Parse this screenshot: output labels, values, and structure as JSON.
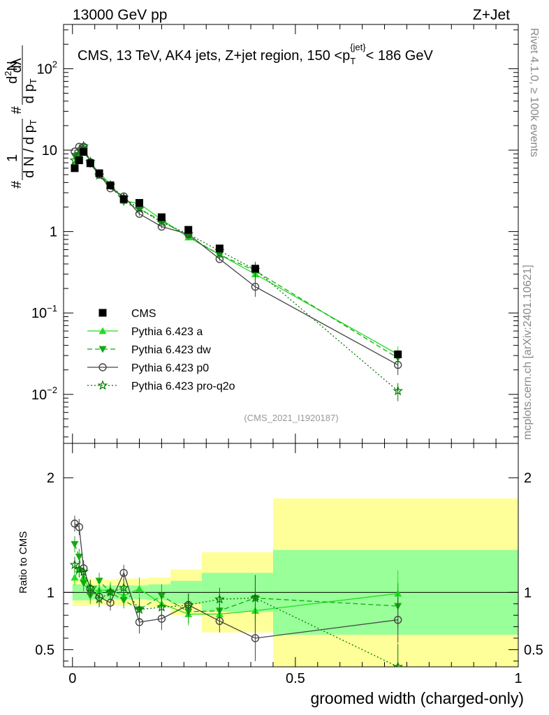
{
  "header": {
    "left_label": "13000 GeV pp",
    "right_label": "Z+Jet"
  },
  "side_labels": {
    "rivet": "Rivet 4.1.0, ≥ 100k events",
    "mcplots": "mcplots.cern.ch [arXiv:2401.10621]"
  },
  "chart_data": [
    {
      "type": "line",
      "scale": "log",
      "title": "CMS, 13 TeV, AK4 jets, Z+jet region, 150 <p_T^{jet}< 186 GeV",
      "title_parts": {
        "main": "CMS, 13 TeV, AK4 jets, Z+jet region, 150 <p",
        "sub": "T",
        "sup": "{jet}",
        "tail": "< 186 GeV"
      },
      "ylabel": "1/dN/dpT · d²N/dpT dλ",
      "ylabel_parts": {
        "one": "1",
        "den": "d N / d p",
        "den_sub": "T",
        "num": "d",
        "num_sup": "2",
        "num_N": "N",
        "den2": "d p",
        "den2_sub": "T",
        "lambda": "dλ",
        "hash": "#"
      },
      "watermark": "(CMS_2021_I1920187)",
      "xlim": [
        -0.02,
        1.0
      ],
      "ylim": [
        0.0025,
        350
      ],
      "y_ticks": [
        {
          "value": 0.01,
          "base": "10",
          "exp": "−2"
        },
        {
          "value": 0.1,
          "base": "10",
          "exp": "−1"
        },
        {
          "value": 1,
          "base": "1",
          "exp": ""
        },
        {
          "value": 10,
          "base": "10",
          "exp": ""
        },
        {
          "value": 100,
          "base": "10",
          "exp": "2"
        }
      ],
      "x": [
        0.005,
        0.015,
        0.025,
        0.04,
        0.06,
        0.085,
        0.115,
        0.15,
        0.2,
        0.26,
        0.33,
        0.41,
        0.73
      ],
      "series": [
        {
          "name": "CMS",
          "color": "#000000",
          "marker": "square",
          "line": "none",
          "values": [
            6.0,
            7.5,
            9.5,
            6.9,
            5.2,
            3.7,
            2.5,
            2.25,
            1.5,
            1.05,
            0.62,
            0.35,
            0.031
          ]
        },
        {
          "name": "Pythia 6.423 a",
          "color": "#22dd22",
          "marker": "triangle-up",
          "line": "solid",
          "values": [
            6.8,
            9.0,
            10.8,
            7.0,
            5.3,
            3.8,
            2.4,
            2.2,
            1.4,
            0.85,
            0.52,
            0.3,
            0.031
          ]
        },
        {
          "name": "Pythia 6.423 dw",
          "color": "#11aa11",
          "marker": "triangle-down",
          "line": "dashed",
          "values": [
            8.5,
            9.8,
            10.2,
            6.7,
            5.0,
            3.7,
            2.3,
            1.9,
            1.35,
            0.87,
            0.52,
            0.33,
            0.028
          ]
        },
        {
          "name": "Pythia 6.423 p0",
          "color": "#444444",
          "marker": "circle-open",
          "line": "solid",
          "values": [
            9.6,
            11.0,
            11.0,
            7.1,
            5.0,
            3.4,
            2.7,
            1.65,
            1.15,
            0.93,
            0.46,
            0.21,
            0.023
          ]
        },
        {
          "name": "Pythia 6.423 pro-q2o",
          "color": "#007700",
          "marker": "star-open",
          "line": "dotted",
          "values": [
            7.5,
            9.0,
            11.2,
            7.2,
            4.9,
            3.7,
            2.6,
            1.9,
            1.3,
            0.93,
            0.58,
            0.34,
            0.011
          ]
        }
      ]
    },
    {
      "type": "line",
      "scale": "linear",
      "xlabel": "groomed width (charged-only)",
      "ylabel": "Ratio to CMS",
      "xlim": [
        -0.02,
        1.0
      ],
      "ylim": [
        0.35,
        2.3
      ],
      "y_ticks": [
        "0.5",
        "1",
        "2"
      ],
      "x_ticks": [
        "0",
        "0.5",
        "1"
      ],
      "bands": [
        {
          "x0": 0.0,
          "x1": 0.045,
          "y_inner": 0.07,
          "y_outer": 0.12
        },
        {
          "x0": 0.045,
          "x1": 0.1,
          "y_inner": 0.06,
          "y_outer": 0.11
        },
        {
          "x0": 0.1,
          "x1": 0.17,
          "y_inner": 0.06,
          "y_outer": 0.12
        },
        {
          "x0": 0.17,
          "x1": 0.22,
          "y_inner": 0.07,
          "y_outer": 0.13
        },
        {
          "x0": 0.22,
          "x1": 0.29,
          "y_inner": 0.1,
          "y_outer": 0.2
        },
        {
          "x0": 0.29,
          "x1": 0.45,
          "y_inner": 0.17,
          "y_outer": 0.35
        },
        {
          "x0": 0.45,
          "x1": 1.0,
          "y_inner": 0.37,
          "y_outer": 0.82
        }
      ],
      "x": [
        0.005,
        0.015,
        0.025,
        0.04,
        0.06,
        0.085,
        0.115,
        0.15,
        0.2,
        0.26,
        0.33,
        0.41,
        0.73
      ],
      "series": [
        {
          "name": "Pythia 6.423 a",
          "values": [
            1.13,
            1.2,
            1.13,
            1.01,
            1.02,
            1.02,
            0.97,
            1.03,
            0.9,
            0.81,
            0.81,
            0.84,
            0.99
          ]
        },
        {
          "name": "Pythia 6.423 dw",
          "values": [
            1.42,
            1.31,
            1.08,
            0.97,
            1.1,
            1.0,
            0.93,
            0.85,
            0.97,
            0.83,
            0.84,
            0.95,
            0.88
          ]
        },
        {
          "name": "Pythia 6.423 p0",
          "values": [
            1.6,
            1.57,
            1.21,
            1.03,
            0.96,
            0.91,
            1.17,
            0.74,
            0.77,
            0.89,
            0.75,
            0.6,
            0.76
          ]
        },
        {
          "name": "Pythia 6.423 pro-q2o",
          "values": [
            1.24,
            1.2,
            1.18,
            1.04,
            0.94,
            1.0,
            1.04,
            0.85,
            0.87,
            0.89,
            0.94,
            0.95,
            0.35
          ]
        }
      ]
    }
  ]
}
